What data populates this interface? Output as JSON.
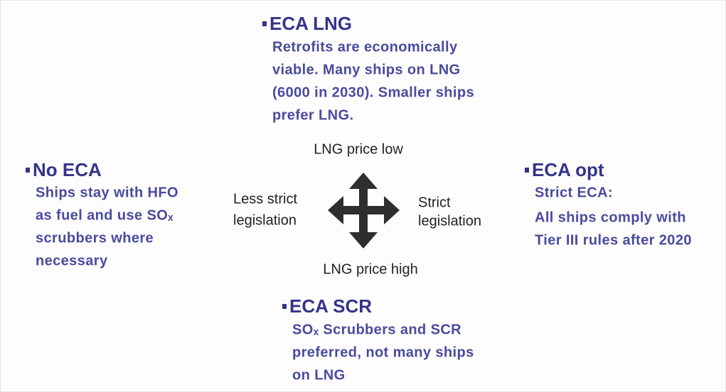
{
  "scenarios": [
    {
      "title": "ECA LNG",
      "lines": [
        "Retrofits are economically",
        "viable.  Many ships on LNG",
        "(6000 in 2030).  Smaller ships",
        "prefer LNG."
      ]
    },
    {
      "title": "No ECA",
      "lines": [
        "Ships stay with HFO",
        "as fuel and  use SOₓ",
        "scrubbers where",
        "necessary"
      ]
    },
    {
      "title": "ECA opt",
      "lines": [
        "Strict ECA:",
        "All ships comply with",
        "Tier III rules after 2020"
      ]
    },
    {
      "title": "ECA SCR",
      "lines": [
        "SOₓ Scrubbers and SCR",
        "preferred, not many ships",
        "on LNG"
      ]
    }
  ],
  "axes": {
    "top": "LNG price low",
    "bottom": "LNG price high",
    "left": [
      "Less strict",
      "legislation"
    ],
    "right": [
      "Strict",
      "legislation"
    ]
  }
}
